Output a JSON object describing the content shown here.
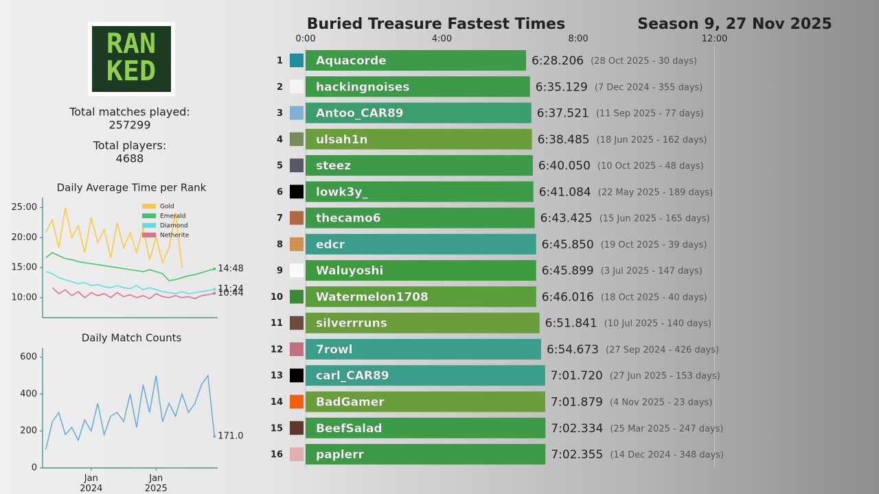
{
  "stats": {
    "matches_label": "Total matches played:",
    "matches": "257299",
    "players_label": "Total players:",
    "players": "4688"
  },
  "logo": [
    "RAN",
    "KED"
  ],
  "chart_data": [
    {
      "type": "bar",
      "orientation": "horizontal",
      "title": "Buried Treasure Fastest Times",
      "subtitle": "Season 9, 27 Nov 2025",
      "ranks": [
        1,
        2,
        3,
        4,
        5,
        6,
        7,
        8,
        9,
        10,
        11,
        12,
        13,
        14,
        15,
        16
      ],
      "categories": [
        "Aquacorde",
        "hackingnoises",
        "Antoo_CAR89",
        "ulsah1n",
        "steez",
        "lowk3y_",
        "thecamo6",
        "edcr",
        "Waluyoshi",
        "Watermelon1708",
        "silverrruns",
        "7rowl",
        "carl_CAR89",
        "BadGamer",
        "BeefSalad",
        "paplerr"
      ],
      "values": [
        388.206,
        395.129,
        397.521,
        398.485,
        400.05,
        401.084,
        403.425,
        405.85,
        405.899,
        406.016,
        411.841,
        414.673,
        421.72,
        421.879,
        422.334,
        422.355
      ],
      "value_labels": [
        "6:28.206",
        "6:35.129",
        "6:37.521",
        "6:38.485",
        "6:40.050",
        "6:41.084",
        "6:43.425",
        "6:45.850",
        "6:45.899",
        "6:46.016",
        "6:51.841",
        "6:54.673",
        "7:01.720",
        "7:01.879",
        "7:02.334",
        "7:02.355"
      ],
      "annotations": [
        "(28 Oct 2025 - 30 days)",
        "(7 Dec 2024 - 355 days)",
        "(11 Sep 2025 - 77 days)",
        "(18 Jun 2025 - 162 days)",
        "(10 Oct 2025 - 48 days)",
        "(22 May 2025 - 189 days)",
        "(15 Jun 2025 - 165 days)",
        "(19 Oct 2025 - 39 days)",
        "(3 Jul 2025 - 147 days)",
        "(18 Oct 2025 - 40 days)",
        "(10 Jul 2025 - 140 days)",
        "(27 Sep 2024 - 426 days)",
        "(27 Jun 2025 - 153 days)",
        "(4 Nov 2025 - 23 days)",
        "(25 Mar 2025 - 247 days)",
        "(14 Dec 2024 - 348 days)"
      ],
      "colors": [
        "#3d9b48",
        "#3d9b48",
        "#3c9e6e",
        "#6a9e3a",
        "#3d9b48",
        "#3d9b48",
        "#3d9b48",
        "#3a9e8a",
        "#3d9b3d",
        "#5a9e3a",
        "#6a9e3a",
        "#3a9e8a",
        "#3a9e8a",
        "#6a9e3a",
        "#3d9b48",
        "#3d9b48"
      ],
      "xlim": [
        0,
        960
      ],
      "xticks": [
        {
          "value": 0,
          "label": "0:00"
        },
        {
          "value": 240,
          "label": "4:00"
        },
        {
          "value": 480,
          "label": "8:00"
        },
        {
          "value": 720,
          "label": "12:00"
        }
      ],
      "grid": true
    },
    {
      "type": "line",
      "title": "Daily Average Time per Rank",
      "legend": "upper right",
      "x": [
        2023.3,
        2023.4,
        2023.5,
        2023.6,
        2023.7,
        2023.8,
        2023.9,
        2024.0,
        2024.1,
        2024.2,
        2024.3,
        2024.4,
        2024.5,
        2024.6,
        2024.7,
        2024.8,
        2024.9,
        2025.0,
        2025.1,
        2025.2,
        2025.3,
        2025.4,
        2025.5,
        2025.6,
        2025.7,
        2025.8,
        2025.9
      ],
      "xlim": [
        2023.25,
        2025.95
      ],
      "ylim": [
        400,
        1600
      ],
      "yticks": [
        {
          "value": 600,
          "label": "10:00"
        },
        {
          "value": 900,
          "label": "15:00"
        },
        {
          "value": 1200,
          "label": "20:00"
        },
        {
          "value": 1500,
          "label": "25:00"
        }
      ],
      "series": [
        {
          "name": "Gold",
          "color": "#ffc93c",
          "values": [
            1250,
            1380,
            1100,
            1500,
            1200,
            1320,
            1050,
            1400,
            1150,
            1280,
            1000,
            1350,
            1100,
            1250,
            1050,
            1300,
            980,
            1200,
            950,
            1100,
            1450,
            900,
            null,
            null,
            null,
            null,
            null
          ]
        },
        {
          "name": "Emerald",
          "color": "#3cc96a",
          "values": [
            1000,
            1050,
            1020,
            990,
            980,
            960,
            950,
            940,
            930,
            920,
            910,
            900,
            890,
            880,
            870,
            860,
            880,
            860,
            840,
            770,
            780,
            800,
            820,
            830,
            850,
            870,
            888
          ],
          "value_labels": [
            null,
            null,
            null,
            null,
            null,
            null,
            null,
            null,
            null,
            null,
            null,
            null,
            null,
            null,
            null,
            null,
            null,
            null,
            null,
            null,
            null,
            null,
            null,
            null,
            null,
            null,
            "14:48"
          ]
        },
        {
          "name": "Diamond",
          "color": "#5ddfe0",
          "values": [
            860,
            840,
            800,
            780,
            760,
            740,
            750,
            720,
            730,
            710,
            700,
            720,
            700,
            690,
            720,
            680,
            700,
            680,
            660,
            650,
            640,
            660,
            640,
            650,
            660,
            670,
            684
          ],
          "value_labels": [
            null,
            null,
            null,
            null,
            null,
            null,
            null,
            null,
            null,
            null,
            null,
            null,
            null,
            null,
            null,
            null,
            null,
            null,
            null,
            null,
            null,
            null,
            null,
            null,
            null,
            null,
            "11:24"
          ]
        },
        {
          "name": "Netherite",
          "color": "#e0708a",
          "values": [
            null,
            700,
            640,
            680,
            620,
            660,
            600,
            650,
            620,
            640,
            600,
            650,
            610,
            630,
            600,
            620,
            590,
            640,
            610,
            600,
            620,
            600,
            610,
            590,
            620,
            630,
            644
          ],
          "value_labels": [
            null,
            null,
            null,
            null,
            null,
            null,
            null,
            null,
            null,
            null,
            null,
            null,
            null,
            null,
            null,
            null,
            null,
            null,
            null,
            null,
            null,
            null,
            null,
            null,
            null,
            null,
            "10:44"
          ]
        }
      ]
    },
    {
      "type": "line",
      "title": "Daily Match Counts",
      "x": [
        2023.3,
        2023.4,
        2023.5,
        2023.6,
        2023.7,
        2023.8,
        2023.9,
        2024.0,
        2024.1,
        2024.2,
        2024.3,
        2024.4,
        2024.5,
        2024.6,
        2024.7,
        2024.8,
        2024.9,
        2025.0,
        2025.1,
        2025.2,
        2025.3,
        2025.4,
        2025.5,
        2025.6,
        2025.7,
        2025.8,
        2025.9
      ],
      "xlim": [
        2023.25,
        2025.95
      ],
      "ylim": [
        0,
        650
      ],
      "yticks": [
        0,
        200,
        400,
        600
      ],
      "xticks": [
        {
          "value": 2024,
          "label": "Jan\n2024"
        },
        {
          "value": 2025,
          "label": "Jan\n2025"
        }
      ],
      "series": [
        {
          "color": "#6aaed6",
          "values": [
            100,
            250,
            300,
            180,
            220,
            150,
            260,
            200,
            350,
            180,
            280,
            300,
            250,
            400,
            220,
            450,
            300,
            500,
            250,
            350,
            280,
            400,
            300,
            350,
            450,
            500,
            171
          ],
          "value_labels": [
            null,
            null,
            null,
            null,
            null,
            null,
            null,
            null,
            null,
            null,
            null,
            null,
            null,
            null,
            null,
            null,
            null,
            null,
            null,
            null,
            null,
            null,
            null,
            null,
            null,
            null,
            "171.0"
          ]
        }
      ]
    }
  ]
}
